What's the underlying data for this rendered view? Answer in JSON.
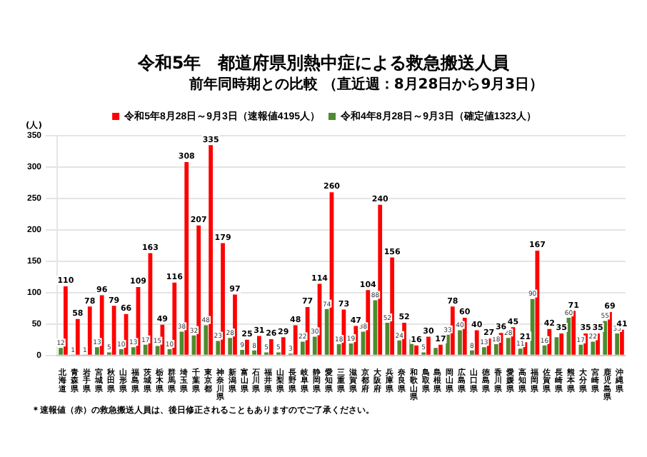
{
  "chart_data": {
    "type": "bar",
    "title": "令和5年　都道府県別熱中症による救急搬送人員",
    "subtitle": "前年同時期との比較 （直近週：8月28日から9月3日）",
    "ylabel": "(人)",
    "categories": [
      "北海道",
      "青森県",
      "岩手県",
      "宮城県",
      "秋田県",
      "山形県",
      "福島県",
      "茨城県",
      "栃木県",
      "群馬県",
      "埼玉県",
      "千葉県",
      "東京都",
      "神奈川県",
      "新潟県",
      "富山県",
      "石川県",
      "福井県",
      "山梨県",
      "長野県",
      "岐阜県",
      "静岡県",
      "愛知県",
      "三重県",
      "滋賀県",
      "京都府",
      "大阪府",
      "兵庫県",
      "奈良県",
      "和歌山県",
      "鳥取県",
      "島根県",
      "岡山県",
      "広島県",
      "山口県",
      "徳島県",
      "香川県",
      "愛媛県",
      "高知県",
      "福岡県",
      "佐賀県",
      "長崎県",
      "熊本県",
      "大分県",
      "宮崎県",
      "鹿児島県",
      "沖縄県"
    ],
    "series": [
      {
        "name": "令和4年8月28日～9月3日（確定値1323人）",
        "color": "#4e8a2e",
        "values": [
          12,
          1,
          1,
          13,
          5,
          10,
          13,
          17,
          15,
          10,
          38,
          32,
          48,
          23,
          28,
          9,
          8,
          5,
          5,
          3,
          22,
          30,
          74,
          18,
          19,
          38,
          88,
          52,
          24,
          26,
          5,
          12,
          33,
          40,
          8,
          13,
          18,
          28,
          11,
          90,
          16,
          29,
          60,
          17,
          22,
          55,
          35
        ],
        "value_labels": [
          "12",
          "1",
          "1",
          "13",
          "5",
          "10",
          "13",
          "17",
          "15",
          "10",
          "38",
          "32",
          "48",
          "23",
          "28",
          "9",
          "8",
          "5",
          "5",
          "3",
          "22",
          "30",
          "74",
          "18",
          "19",
          "38",
          "88",
          "52",
          "24",
          null,
          "5",
          null,
          "33",
          "40",
          "8",
          "13",
          "18",
          "28",
          "11",
          "90",
          "16",
          null,
          "60",
          "17",
          "22",
          "55",
          "35"
        ]
      },
      {
        "name": "令和5年8月28日～9月3日（速報値4195人）",
        "color": "#ff0000",
        "values": [
          110,
          58,
          78,
          96,
          79,
          66,
          109,
          163,
          49,
          116,
          308,
          207,
          335,
          179,
          97,
          25,
          31,
          26,
          29,
          48,
          77,
          114,
          260,
          73,
          47,
          104,
          240,
          156,
          52,
          16,
          30,
          17,
          78,
          60,
          40,
          27,
          36,
          45,
          21,
          167,
          42,
          35,
          71,
          35,
          35,
          69,
          41
        ],
        "value_labels": [
          "110",
          "58",
          "78",
          "96",
          "79",
          "66",
          "109",
          "163",
          "49",
          "116",
          "308",
          "207",
          "335",
          "179",
          "97",
          "25",
          "31",
          "26",
          "29",
          "48",
          "77",
          "114",
          "260",
          "73",
          "47",
          "104",
          "240",
          "156",
          "52",
          "16",
          "30",
          "17",
          "78",
          "60",
          "40",
          "27",
          "36",
          "45",
          "21",
          "167",
          "42",
          "35",
          "71",
          "35",
          "35",
          "69",
          "41"
        ]
      }
    ],
    "ylim": [
      0,
      350
    ],
    "yticks": [
      0,
      50,
      100,
      150,
      200,
      250,
      300,
      350
    ],
    "grid": "y",
    "legend": "top",
    "annotations": [
      "＊速報値（赤）の救急搬送人員は、後日修正されることもありますのでご了承ください。"
    ]
  }
}
